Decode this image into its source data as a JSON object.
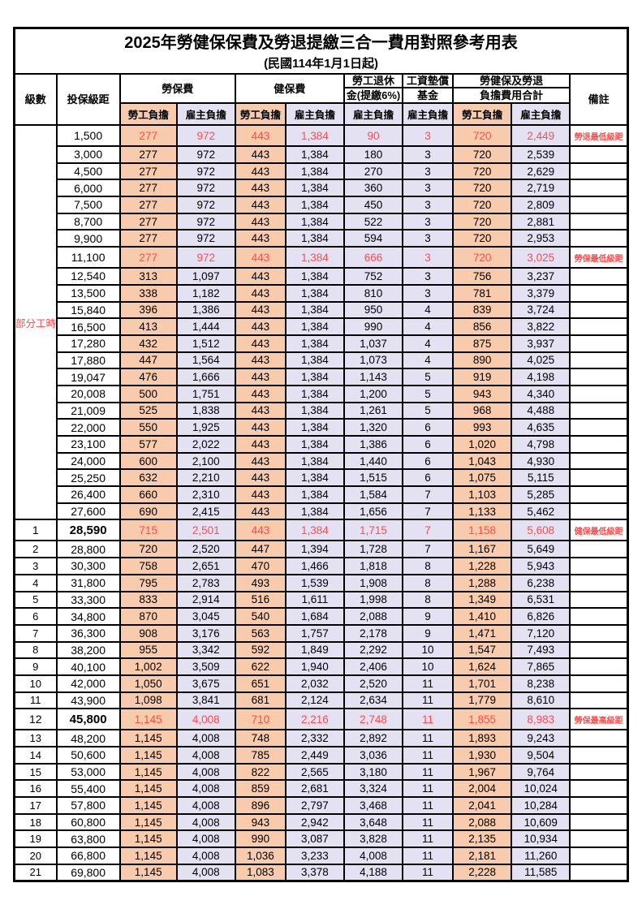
{
  "title": "2025年勞健保保費及勞退提繳三合一費用對照參考用表",
  "subtitle": "(民國114年1月1日起)",
  "colors": {
    "employee_col_bg": "#F8CBAD",
    "employer_col_bg": "#E4E1F3",
    "highlight_text": "#FF4C4C",
    "border": "#000000"
  },
  "header": {
    "level": "級數",
    "bracket": "投保級距",
    "labor_group": "勞保費",
    "health_group": "健保費",
    "pension_line1": "勞工退休",
    "pension_line2": "金(提繳6%)",
    "wage_fund_line1": "工資墊償",
    "wage_fund_line2": "基金",
    "total_line1": "勞健保及勞退",
    "total_line2": "負擔費用合計",
    "employee": "勞工負擔",
    "employer": "雇主負擔",
    "remark": "備註"
  },
  "part_time_label": "部分工時",
  "part_time_rows": 23,
  "rows": [
    {
      "level": "",
      "bracket": "1,500",
      "values": [
        "277",
        "972",
        "443",
        "1,384",
        "90",
        "3",
        "720",
        "2,449"
      ],
      "remark": "勞退最低級距",
      "red": true,
      "bold": false
    },
    {
      "level": "",
      "bracket": "3,000",
      "values": [
        "277",
        "972",
        "443",
        "1,384",
        "180",
        "3",
        "720",
        "2,539"
      ],
      "remark": "",
      "red": false,
      "bold": false
    },
    {
      "level": "",
      "bracket": "4,500",
      "values": [
        "277",
        "972",
        "443",
        "1,384",
        "270",
        "3",
        "720",
        "2,629"
      ],
      "remark": "",
      "red": false,
      "bold": false
    },
    {
      "level": "",
      "bracket": "6,000",
      "values": [
        "277",
        "972",
        "443",
        "1,384",
        "360",
        "3",
        "720",
        "2,719"
      ],
      "remark": "",
      "red": false,
      "bold": false
    },
    {
      "level": "",
      "bracket": "7,500",
      "values": [
        "277",
        "972",
        "443",
        "1,384",
        "450",
        "3",
        "720",
        "2,809"
      ],
      "remark": "",
      "red": false,
      "bold": false
    },
    {
      "level": "",
      "bracket": "8,700",
      "values": [
        "277",
        "972",
        "443",
        "1,384",
        "522",
        "3",
        "720",
        "2,881"
      ],
      "remark": "",
      "red": false,
      "bold": false
    },
    {
      "level": "",
      "bracket": "9,900",
      "values": [
        "277",
        "972",
        "443",
        "1,384",
        "594",
        "3",
        "720",
        "2,953"
      ],
      "remark": "",
      "red": false,
      "bold": false
    },
    {
      "level": "",
      "bracket": "11,100",
      "values": [
        "277",
        "972",
        "443",
        "1,384",
        "666",
        "3",
        "720",
        "3,025"
      ],
      "remark": "勞保最低級距",
      "red": true,
      "bold": false
    },
    {
      "level": "",
      "bracket": "12,540",
      "values": [
        "313",
        "1,097",
        "443",
        "1,384",
        "752",
        "3",
        "756",
        "3,237"
      ],
      "remark": "",
      "red": false,
      "bold": false
    },
    {
      "level": "",
      "bracket": "13,500",
      "values": [
        "338",
        "1,182",
        "443",
        "1,384",
        "810",
        "3",
        "781",
        "3,379"
      ],
      "remark": "",
      "red": false,
      "bold": false
    },
    {
      "level": "",
      "bracket": "15,840",
      "values": [
        "396",
        "1,386",
        "443",
        "1,384",
        "950",
        "4",
        "839",
        "3,724"
      ],
      "remark": "",
      "red": false,
      "bold": false
    },
    {
      "level": "",
      "bracket": "16,500",
      "values": [
        "413",
        "1,444",
        "443",
        "1,384",
        "990",
        "4",
        "856",
        "3,822"
      ],
      "remark": "",
      "red": false,
      "bold": false
    },
    {
      "level": "",
      "bracket": "17,280",
      "values": [
        "432",
        "1,512",
        "443",
        "1,384",
        "1,037",
        "4",
        "875",
        "3,937"
      ],
      "remark": "",
      "red": false,
      "bold": false
    },
    {
      "level": "",
      "bracket": "17,880",
      "values": [
        "447",
        "1,564",
        "443",
        "1,384",
        "1,073",
        "4",
        "890",
        "4,025"
      ],
      "remark": "",
      "red": false,
      "bold": false
    },
    {
      "level": "",
      "bracket": "19,047",
      "values": [
        "476",
        "1,666",
        "443",
        "1,384",
        "1,143",
        "5",
        "919",
        "4,198"
      ],
      "remark": "",
      "red": false,
      "bold": false
    },
    {
      "level": "",
      "bracket": "20,008",
      "values": [
        "500",
        "1,751",
        "443",
        "1,384",
        "1,200",
        "5",
        "943",
        "4,340"
      ],
      "remark": "",
      "red": false,
      "bold": false
    },
    {
      "level": "",
      "bracket": "21,009",
      "values": [
        "525",
        "1,838",
        "443",
        "1,384",
        "1,261",
        "5",
        "968",
        "4,488"
      ],
      "remark": "",
      "red": false,
      "bold": false
    },
    {
      "level": "",
      "bracket": "22,000",
      "values": [
        "550",
        "1,925",
        "443",
        "1,384",
        "1,320",
        "6",
        "993",
        "4,635"
      ],
      "remark": "",
      "red": false,
      "bold": false
    },
    {
      "level": "",
      "bracket": "23,100",
      "values": [
        "577",
        "2,022",
        "443",
        "1,384",
        "1,386",
        "6",
        "1,020",
        "4,798"
      ],
      "remark": "",
      "red": false,
      "bold": false
    },
    {
      "level": "",
      "bracket": "24,000",
      "values": [
        "600",
        "2,100",
        "443",
        "1,384",
        "1,440",
        "6",
        "1,043",
        "4,930"
      ],
      "remark": "",
      "red": false,
      "bold": false
    },
    {
      "level": "",
      "bracket": "25,250",
      "values": [
        "632",
        "2,210",
        "443",
        "1,384",
        "1,515",
        "6",
        "1,075",
        "5,115"
      ],
      "remark": "",
      "red": false,
      "bold": false
    },
    {
      "level": "",
      "bracket": "26,400",
      "values": [
        "660",
        "2,310",
        "443",
        "1,384",
        "1,584",
        "7",
        "1,103",
        "5,285"
      ],
      "remark": "",
      "red": false,
      "bold": false
    },
    {
      "level": "",
      "bracket": "27,600",
      "values": [
        "690",
        "2,415",
        "443",
        "1,384",
        "1,656",
        "7",
        "1,133",
        "5,462"
      ],
      "remark": "",
      "red": false,
      "bold": false
    },
    {
      "level": "1",
      "bracket": "28,590",
      "values": [
        "715",
        "2,501",
        "443",
        "1,384",
        "1,715",
        "7",
        "1,158",
        "5,608"
      ],
      "remark": "健保最低級距",
      "red": true,
      "bold": true
    },
    {
      "level": "2",
      "bracket": "28,800",
      "values": [
        "720",
        "2,520",
        "447",
        "1,394",
        "1,728",
        "7",
        "1,167",
        "5,649"
      ],
      "remark": "",
      "red": false,
      "bold": false
    },
    {
      "level": "3",
      "bracket": "30,300",
      "values": [
        "758",
        "2,651",
        "470",
        "1,466",
        "1,818",
        "8",
        "1,228",
        "5,943"
      ],
      "remark": "",
      "red": false,
      "bold": false
    },
    {
      "level": "4",
      "bracket": "31,800",
      "values": [
        "795",
        "2,783",
        "493",
        "1,539",
        "1,908",
        "8",
        "1,288",
        "6,238"
      ],
      "remark": "",
      "red": false,
      "bold": false
    },
    {
      "level": "5",
      "bracket": "33,300",
      "values": [
        "833",
        "2,914",
        "516",
        "1,611",
        "1,998",
        "8",
        "1,349",
        "6,531"
      ],
      "remark": "",
      "red": false,
      "bold": false
    },
    {
      "level": "6",
      "bracket": "34,800",
      "values": [
        "870",
        "3,045",
        "540",
        "1,684",
        "2,088",
        "9",
        "1,410",
        "6,826"
      ],
      "remark": "",
      "red": false,
      "bold": false
    },
    {
      "level": "7",
      "bracket": "36,300",
      "values": [
        "908",
        "3,176",
        "563",
        "1,757",
        "2,178",
        "9",
        "1,471",
        "7,120"
      ],
      "remark": "",
      "red": false,
      "bold": false
    },
    {
      "level": "8",
      "bracket": "38,200",
      "values": [
        "955",
        "3,342",
        "592",
        "1,849",
        "2,292",
        "10",
        "1,547",
        "7,493"
      ],
      "remark": "",
      "red": false,
      "bold": false
    },
    {
      "level": "9",
      "bracket": "40,100",
      "values": [
        "1,002",
        "3,509",
        "622",
        "1,940",
        "2,406",
        "10",
        "1,624",
        "7,865"
      ],
      "remark": "",
      "red": false,
      "bold": false
    },
    {
      "level": "10",
      "bracket": "42,000",
      "values": [
        "1,050",
        "3,675",
        "651",
        "2,032",
        "2,520",
        "11",
        "1,701",
        "8,238"
      ],
      "remark": "",
      "red": false,
      "bold": false
    },
    {
      "level": "11",
      "bracket": "43,900",
      "values": [
        "1,098",
        "3,841",
        "681",
        "2,124",
        "2,634",
        "11",
        "1,779",
        "8,610"
      ],
      "remark": "",
      "red": false,
      "bold": false
    },
    {
      "level": "12",
      "bracket": "45,800",
      "values": [
        "1,145",
        "4,008",
        "710",
        "2,216",
        "2,748",
        "11",
        "1,855",
        "8,983"
      ],
      "remark": "勞保最高級距",
      "red": true,
      "bold": true
    },
    {
      "level": "13",
      "bracket": "48,200",
      "values": [
        "1,145",
        "4,008",
        "748",
        "2,332",
        "2,892",
        "11",
        "1,893",
        "9,243"
      ],
      "remark": "",
      "red": false,
      "bold": false
    },
    {
      "level": "14",
      "bracket": "50,600",
      "values": [
        "1,145",
        "4,008",
        "785",
        "2,449",
        "3,036",
        "11",
        "1,930",
        "9,504"
      ],
      "remark": "",
      "red": false,
      "bold": false
    },
    {
      "level": "15",
      "bracket": "53,000",
      "values": [
        "1,145",
        "4,008",
        "822",
        "2,565",
        "3,180",
        "11",
        "1,967",
        "9,764"
      ],
      "remark": "",
      "red": false,
      "bold": false
    },
    {
      "level": "16",
      "bracket": "55,400",
      "values": [
        "1,145",
        "4,008",
        "859",
        "2,681",
        "3,324",
        "11",
        "2,004",
        "10,024"
      ],
      "remark": "",
      "red": false,
      "bold": false
    },
    {
      "level": "17",
      "bracket": "57,800",
      "values": [
        "1,145",
        "4,008",
        "896",
        "2,797",
        "3,468",
        "11",
        "2,041",
        "10,284"
      ],
      "remark": "",
      "red": false,
      "bold": false
    },
    {
      "level": "18",
      "bracket": "60,800",
      "values": [
        "1,145",
        "4,008",
        "943",
        "2,942",
        "3,648",
        "11",
        "2,088",
        "10,609"
      ],
      "remark": "",
      "red": false,
      "bold": false
    },
    {
      "level": "19",
      "bracket": "63,800",
      "values": [
        "1,145",
        "4,008",
        "990",
        "3,087",
        "3,828",
        "11",
        "2,135",
        "10,934"
      ],
      "remark": "",
      "red": false,
      "bold": false
    },
    {
      "level": "20",
      "bracket": "66,800",
      "values": [
        "1,145",
        "4,008",
        "1,036",
        "3,233",
        "4,008",
        "11",
        "2,181",
        "11,260"
      ],
      "remark": "",
      "red": false,
      "bold": false
    },
    {
      "level": "21",
      "bracket": "69,800",
      "values": [
        "1,145",
        "4,008",
        "1,083",
        "3,378",
        "4,188",
        "11",
        "2,228",
        "11,585"
      ],
      "remark": "",
      "red": false,
      "bold": false
    }
  ],
  "column_semantics": [
    "level",
    "insured-salary-bracket",
    "labor-insurance-employee",
    "labor-insurance-employer",
    "health-insurance-employee",
    "health-insurance-employer",
    "pension-employer",
    "wage-arrears-fund-employer",
    "total-employee",
    "total-employer",
    "remark"
  ]
}
